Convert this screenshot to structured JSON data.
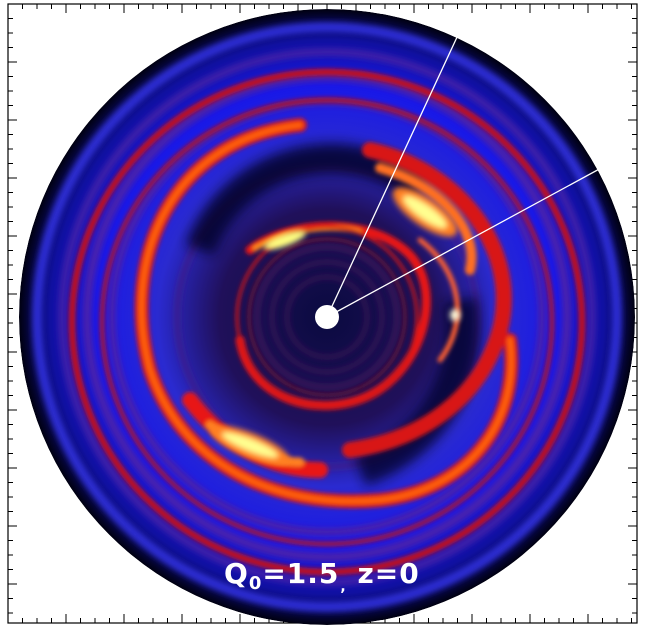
{
  "label": {
    "q_symbol": "Q",
    "q_subscript": "0",
    "q_value": "=1.5",
    "tick": ",",
    "z_text": "z=0"
  },
  "colors": {
    "background": "#ffffff",
    "frame": "#000000",
    "disk_dark": "#000030",
    "disk_blue": "#1a1aff",
    "disk_purple": "#5a2a9a",
    "arm_red": "#e01010",
    "arm_orange": "#ff6a00",
    "arm_yellow": "#ffff80",
    "center_hole": "#ffffff",
    "lines": "#ffffff"
  }
}
